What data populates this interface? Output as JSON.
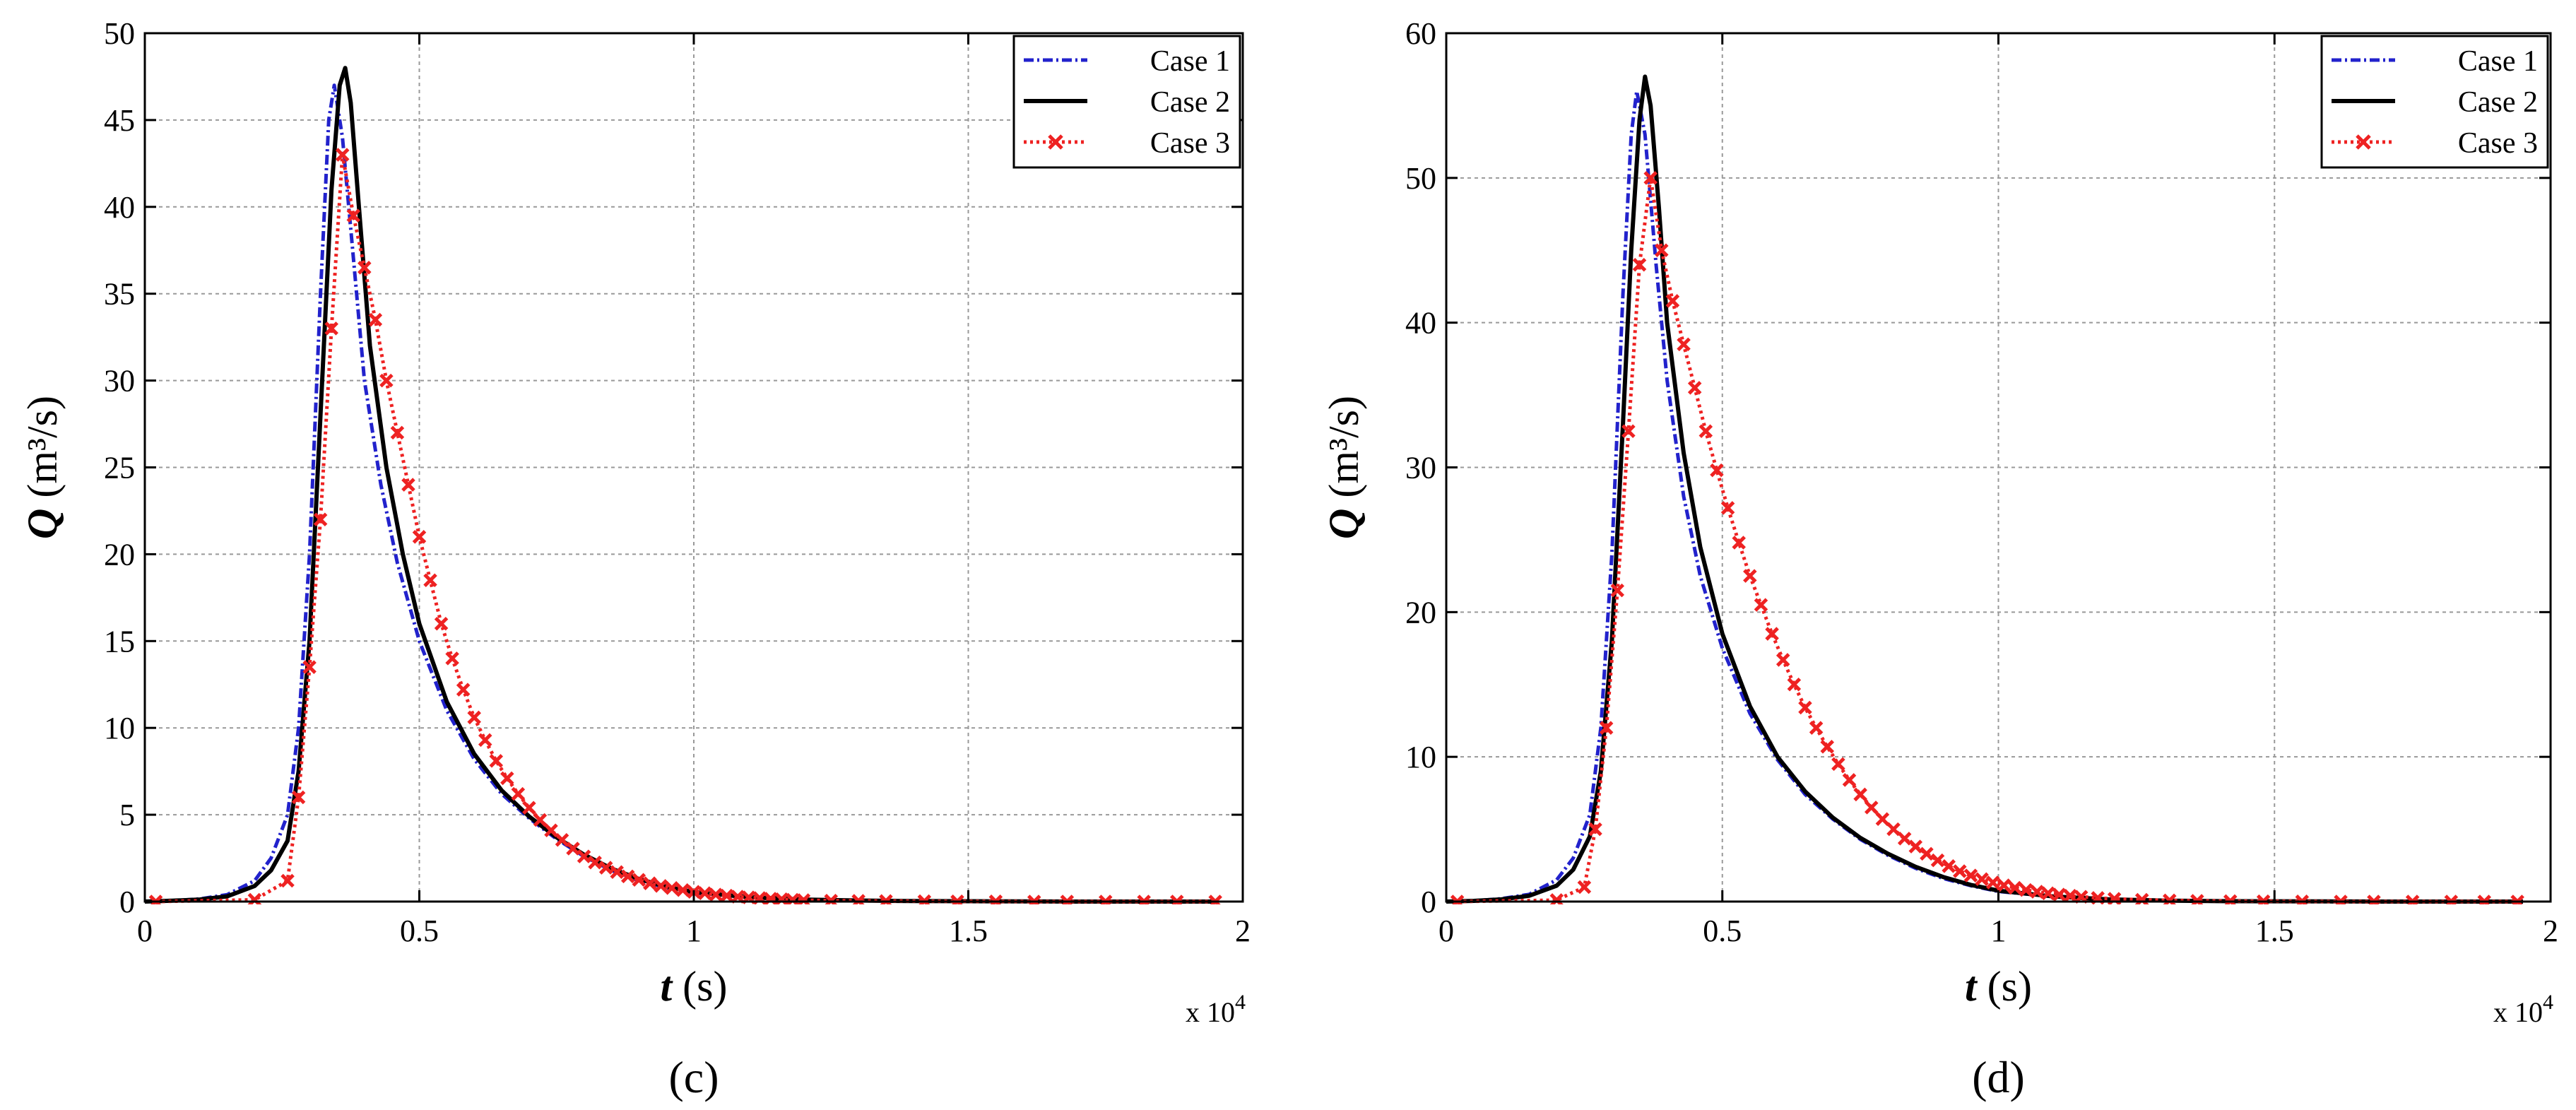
{
  "chart_data": [
    {
      "type": "line",
      "panel_label": "(c)",
      "xlabel_var": "t",
      "xlabel_unit": "(s)",
      "ylabel_var": "Q",
      "ylabel_unit": "(m³/s)",
      "x_multiplier": "x 10",
      "x_multiplier_exp": "4",
      "xlim": [
        0,
        2
      ],
      "ylim": [
        0,
        50
      ],
      "xticks": [
        0,
        0.5,
        1,
        1.5,
        2
      ],
      "xtick_labels": [
        "0",
        "0.5",
        "1",
        "1.5",
        "2"
      ],
      "yticks": [
        0,
        5,
        10,
        15,
        20,
        25,
        30,
        35,
        40,
        45,
        50
      ],
      "ytick_labels": [
        "0",
        "5",
        "10",
        "15",
        "20",
        "25",
        "30",
        "35",
        "40",
        "45",
        "50"
      ],
      "grid": true,
      "legend_position": "top-right",
      "series": [
        {
          "name": "Case 1",
          "color": "#2222cc",
          "style": "dash-dot",
          "marker": "none",
          "x": [
            0,
            0.05,
            0.1,
            0.15,
            0.2,
            0.23,
            0.26,
            0.28,
            0.3,
            0.32,
            0.335,
            0.345,
            0.36,
            0.38,
            0.4,
            0.43,
            0.46,
            0.5,
            0.55,
            0.6,
            0.65,
            0.7,
            0.75,
            0.8,
            0.85,
            0.9,
            0.95,
            1.0,
            1.1,
            1.2,
            1.3,
            1.4,
            1.5,
            1.6,
            1.7,
            1.8,
            1.9,
            1.95
          ],
          "y": [
            0,
            0.05,
            0.15,
            0.4,
            1.2,
            2.5,
            5,
            10,
            20,
            35,
            45,
            47,
            44,
            37,
            30,
            24,
            19.5,
            15,
            11,
            8.2,
            6.2,
            4.8,
            3.6,
            2.6,
            1.8,
            1.2,
            0.8,
            0.5,
            0.25,
            0.12,
            0.06,
            0.03,
            0.02,
            0.01,
            0,
            0,
            0,
            0
          ]
        },
        {
          "name": "Case 2",
          "color": "#000000",
          "style": "solid",
          "marker": "none",
          "x": [
            0,
            0.05,
            0.1,
            0.15,
            0.2,
            0.23,
            0.26,
            0.28,
            0.3,
            0.32,
            0.34,
            0.355,
            0.365,
            0.375,
            0.39,
            0.41,
            0.44,
            0.47,
            0.5,
            0.55,
            0.6,
            0.65,
            0.7,
            0.75,
            0.8,
            0.85,
            0.9,
            0.95,
            1.0,
            1.1,
            1.2,
            1.3,
            1.4,
            1.5,
            1.6,
            1.7,
            1.8,
            1.9,
            1.95
          ],
          "y": [
            0,
            0.05,
            0.12,
            0.3,
            0.9,
            1.8,
            3.5,
            7.5,
            15,
            28,
            41,
            47,
            48,
            46,
            40,
            32,
            25,
            20,
            16,
            11.5,
            8.5,
            6.4,
            4.9,
            3.7,
            2.7,
            1.9,
            1.3,
            0.85,
            0.55,
            0.25,
            0.12,
            0.06,
            0.03,
            0.02,
            0.01,
            0,
            0,
            0,
            0
          ]
        },
        {
          "name": "Case 3",
          "color": "#ee2222",
          "style": "dotted",
          "marker": "x",
          "x": [
            0.02,
            0.2,
            0.26,
            0.28,
            0.3,
            0.32,
            0.34,
            0.36,
            0.38,
            0.4,
            0.42,
            0.44,
            0.46,
            0.48,
            0.5,
            0.52,
            0.54,
            0.56,
            0.58,
            0.6,
            0.62,
            0.64,
            0.66,
            0.68,
            0.7,
            0.72,
            0.74,
            0.76,
            0.78,
            0.8,
            0.82,
            0.84,
            0.86,
            0.88,
            0.9,
            0.92,
            0.94,
            0.96,
            0.98,
            1.0,
            1.02,
            1.04,
            1.06,
            1.08,
            1.1,
            1.12,
            1.14,
            1.16,
            1.18,
            1.2,
            1.25,
            1.3,
            1.35,
            1.42,
            1.48,
            1.55,
            1.62,
            1.68,
            1.75,
            1.82,
            1.88,
            1.95
          ],
          "y": [
            0,
            0.1,
            1.2,
            6,
            13.5,
            22,
            33,
            43,
            39.5,
            36.5,
            33.5,
            30,
            27,
            24,
            21,
            18.5,
            16,
            14,
            12.2,
            10.6,
            9.3,
            8.1,
            7.1,
            6.2,
            5.4,
            4.7,
            4.1,
            3.55,
            3.05,
            2.6,
            2.25,
            1.95,
            1.7,
            1.45,
            1.25,
            1.05,
            0.9,
            0.78,
            0.66,
            0.56,
            0.48,
            0.4,
            0.34,
            0.28,
            0.24,
            0.2,
            0.16,
            0.13,
            0.1,
            0.08,
            0.05,
            0.04,
            0.03,
            0.02,
            0.01,
            0.01,
            0,
            0,
            0,
            0,
            0,
            0
          ]
        }
      ]
    },
    {
      "type": "line",
      "panel_label": "(d)",
      "xlabel_var": "t",
      "xlabel_unit": "(s)",
      "ylabel_var": "Q",
      "ylabel_unit": "(m³/s)",
      "x_multiplier": "x 10",
      "x_multiplier_exp": "4",
      "xlim": [
        0,
        2
      ],
      "ylim": [
        0,
        60
      ],
      "xticks": [
        0,
        0.5,
        1,
        1.5,
        2
      ],
      "xtick_labels": [
        "0",
        "0.5",
        "1",
        "1.5",
        "2"
      ],
      "yticks": [
        0,
        10,
        20,
        30,
        40,
        50,
        60
      ],
      "ytick_labels": [
        "0",
        "10",
        "20",
        "30",
        "40",
        "50",
        "60"
      ],
      "grid": true,
      "legend_position": "top-right",
      "series": [
        {
          "name": "Case 1",
          "color": "#2222cc",
          "style": "dash-dot",
          "marker": "none",
          "x": [
            0,
            0.05,
            0.1,
            0.15,
            0.2,
            0.23,
            0.26,
            0.28,
            0.3,
            0.32,
            0.335,
            0.345,
            0.36,
            0.38,
            0.4,
            0.43,
            0.46,
            0.5,
            0.55,
            0.6,
            0.65,
            0.7,
            0.75,
            0.8,
            0.85,
            0.9,
            0.95,
            1.0,
            1.1,
            1.2,
            1.3,
            1.4,
            1.5,
            1.6,
            1.7,
            1.8,
            1.9,
            1.95
          ],
          "y": [
            0,
            0.05,
            0.2,
            0.5,
            1.5,
            3,
            6,
            12,
            24,
            42,
            53,
            56,
            53,
            44,
            36,
            28,
            22.5,
            17.5,
            13,
            9.8,
            7.4,
            5.7,
            4.3,
            3.2,
            2.3,
            1.6,
            1.1,
            0.7,
            0.35,
            0.15,
            0.07,
            0.03,
            0.02,
            0.01,
            0,
            0,
            0,
            0
          ]
        },
        {
          "name": "Case 2",
          "color": "#000000",
          "style": "solid",
          "marker": "none",
          "x": [
            0,
            0.05,
            0.1,
            0.15,
            0.2,
            0.23,
            0.26,
            0.28,
            0.3,
            0.32,
            0.335,
            0.35,
            0.36,
            0.37,
            0.385,
            0.4,
            0.43,
            0.46,
            0.5,
            0.55,
            0.6,
            0.65,
            0.7,
            0.75,
            0.8,
            0.85,
            0.9,
            0.95,
            1.0,
            1.1,
            1.2,
            1.3,
            1.4,
            1.5,
            1.6,
            1.7,
            1.8,
            1.9,
            1.95
          ],
          "y": [
            0,
            0.05,
            0.15,
            0.4,
            1.1,
            2.2,
            4.5,
            9,
            18,
            33,
            45,
            54,
            57,
            55,
            48,
            40,
            31,
            24.5,
            18.5,
            13.5,
            10,
            7.6,
            5.8,
            4.4,
            3.3,
            2.4,
            1.7,
            1.15,
            0.75,
            0.35,
            0.15,
            0.07,
            0.03,
            0.02,
            0.01,
            0,
            0,
            0,
            0
          ]
        },
        {
          "name": "Case 3",
          "color": "#ee2222",
          "style": "dotted",
          "marker": "x",
          "x": [
            0.02,
            0.2,
            0.25,
            0.27,
            0.29,
            0.31,
            0.33,
            0.35,
            0.37,
            0.39,
            0.41,
            0.43,
            0.45,
            0.47,
            0.49,
            0.51,
            0.53,
            0.55,
            0.57,
            0.59,
            0.61,
            0.63,
            0.65,
            0.67,
            0.69,
            0.71,
            0.73,
            0.75,
            0.77,
            0.79,
            0.81,
            0.83,
            0.85,
            0.87,
            0.89,
            0.91,
            0.93,
            0.95,
            0.97,
            0.99,
            1.01,
            1.03,
            1.05,
            1.07,
            1.09,
            1.11,
            1.13,
            1.15,
            1.18,
            1.21,
            1.26,
            1.31,
            1.36,
            1.42,
            1.48,
            1.55,
            1.62,
            1.68,
            1.75,
            1.82,
            1.88,
            1.94
          ],
          "y": [
            0,
            0.1,
            1,
            5,
            12,
            21.5,
            32.5,
            44,
            50,
            45,
            41.5,
            38.5,
            35.5,
            32.5,
            29.8,
            27.2,
            24.8,
            22.5,
            20.5,
            18.5,
            16.7,
            15,
            13.4,
            12,
            10.7,
            9.5,
            8.4,
            7.4,
            6.5,
            5.7,
            5,
            4.35,
            3.8,
            3.3,
            2.85,
            2.45,
            2.1,
            1.8,
            1.55,
            1.32,
            1.12,
            0.95,
            0.8,
            0.68,
            0.57,
            0.48,
            0.4,
            0.33,
            0.25,
            0.19,
            0.12,
            0.08,
            0.05,
            0.03,
            0.02,
            0.01,
            0,
            0,
            0,
            0,
            0,
            0
          ]
        }
      ]
    }
  ]
}
